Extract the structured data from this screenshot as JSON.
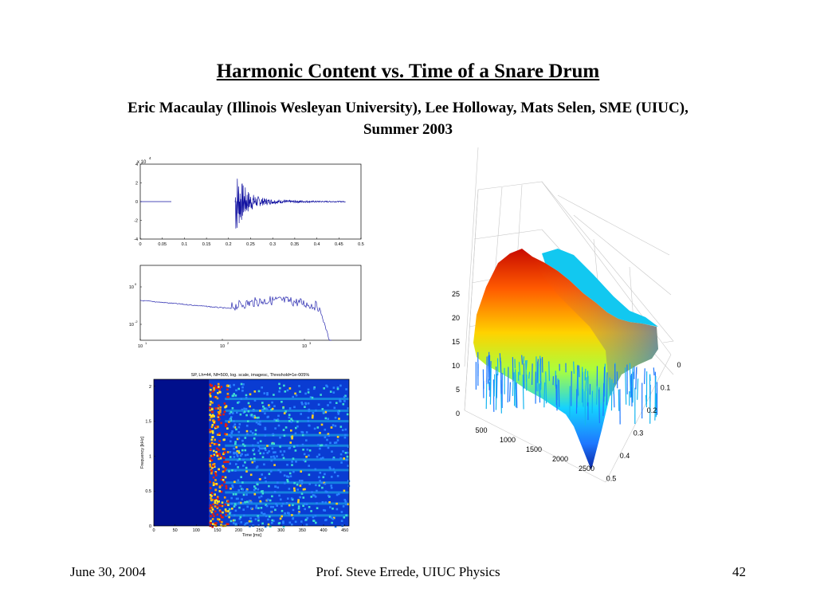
{
  "slide": {
    "title": "Harmonic Content vs. Time of a Snare Drum",
    "subtitle_line1": "Eric Macaulay (Illinois Wesleyan University), Lee Holloway, Mats Selen, SME (UIUC),",
    "subtitle_line2": "Summer 2003"
  },
  "footer": {
    "date": "June 30, 2004",
    "author": "Prof. Steve Errede, UIUC Physics",
    "page": "42"
  },
  "chart_data": [
    {
      "type": "line",
      "y_exponent_label": "x 10",
      "y_exponent": "4",
      "x_ticks": [
        "0",
        "0.05",
        "0.1",
        "0.15",
        "0.2",
        "0.25",
        "0.3",
        "0.35",
        "0.4",
        "0.45",
        "0.5"
      ],
      "y_ticks": [
        "4",
        "2",
        "0",
        "-2",
        "-4"
      ],
      "xlim": [
        0,
        0.5
      ],
      "ylim": [
        -4,
        4
      ],
      "onset_x": 0.215,
      "end_x": 0.465,
      "peak_amplitude": 3.6,
      "color": "#1010a0"
    },
    {
      "type": "line",
      "log_x": true,
      "log_y": true,
      "x_ticks": [
        {
          "base": "10",
          "exp": "1"
        },
        {
          "base": "10",
          "exp": "2"
        },
        {
          "base": "10",
          "exp": "3"
        }
      ],
      "y_ticks": [
        {
          "base": "10",
          "exp": "0"
        },
        {
          "base": "10",
          "exp": "-2"
        }
      ],
      "color": "#2a2ab0"
    },
    {
      "type": "heatmap",
      "title": "SP, Lh=44, Nf=500, log. scale, imagesc, Threshold=1e-005%",
      "xlabel": "Time [ms]",
      "ylabel": "Frequency [kHz]",
      "x_ticks": [
        "0",
        "50",
        "100",
        "150",
        "200",
        "250",
        "300",
        "350",
        "400",
        "450"
      ],
      "y_ticks": [
        "2",
        "1.5",
        "1",
        "0.5",
        "0"
      ],
      "xlim": [
        0,
        460
      ],
      "ylim": [
        0,
        2.1
      ],
      "onset_ms": 130,
      "colors": {
        "background": "#000f8c",
        "low": "#0a3cd2",
        "high": "#e11e0f"
      }
    },
    {
      "type": "surface",
      "z_ticks": [
        "0",
        "5",
        "10",
        "15",
        "20",
        "25"
      ],
      "x_ticks": [
        "0",
        "500",
        "1000",
        "1500",
        "2000",
        "2500"
      ],
      "y_ticks": [
        "0",
        "0.1",
        "0.2",
        "0.3",
        "0.4",
        "0.5"
      ],
      "zlim": [
        0,
        25
      ],
      "colormap": "jet"
    }
  ]
}
